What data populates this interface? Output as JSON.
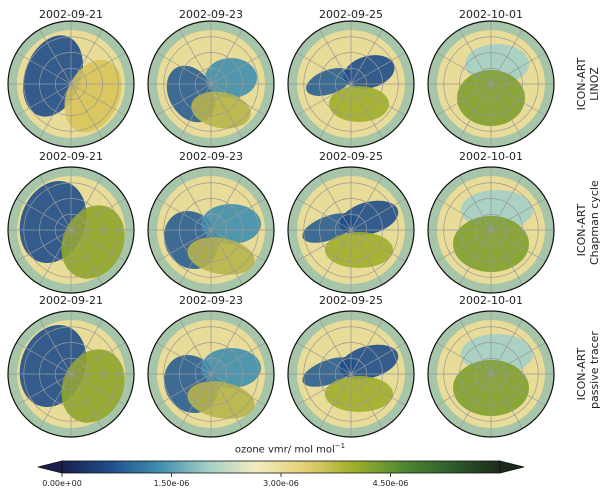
{
  "chart_data": {
    "type": "heatmap",
    "description_rows": [
      "ICON-ART LINOZ",
      "ICON-ART Chapman cycle",
      "ICON-ART passive tracer"
    ],
    "columns": [
      "2002-09-21",
      "2002-09-23",
      "2002-09-25",
      "2002-10-01"
    ],
    "rows": [
      {
        "label_line1": "ICON-ART",
        "label_line2": "LINOZ"
      },
      {
        "label_line1": "ICON-ART",
        "label_line2": "Chapman cycle"
      },
      {
        "label_line1": "ICON-ART",
        "label_line2": "passive tracer"
      }
    ],
    "colorbar": {
      "title": "ozone vmr/ mol mol",
      "title_superscript": "−1",
      "range": [
        0,
        6e-06
      ],
      "extend": "both",
      "ticks": [
        0,
        1.5e-06,
        3e-06,
        4.5e-06
      ],
      "tick_labels": [
        "0.00e+00",
        "1.50e-06",
        "3.00e-06",
        "4.50e-06"
      ],
      "colors": [
        "#1a1f4d",
        "#1f4e8c",
        "#3f8eae",
        "#a3cfc6",
        "#f2ecc0",
        "#e3cf72",
        "#9fae2a",
        "#4f8a34",
        "#2f5c2a",
        "#1c2a1b"
      ]
    },
    "projection": "south polar stereographic",
    "grid": true
  }
}
